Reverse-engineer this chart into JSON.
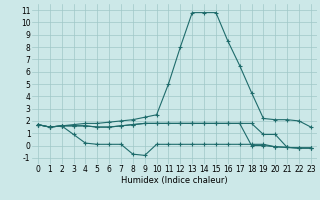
{
  "xlabel": "Humidex (Indice chaleur)",
  "x": [
    0,
    1,
    2,
    3,
    4,
    5,
    6,
    7,
    8,
    9,
    10,
    11,
    12,
    13,
    14,
    15,
    16,
    17,
    18,
    19,
    20,
    21,
    22,
    23
  ],
  "line1": [
    1.7,
    1.5,
    1.6,
    1.7,
    1.8,
    1.8,
    1.9,
    2.0,
    2.1,
    2.3,
    2.5,
    5.0,
    8.0,
    10.8,
    10.8,
    10.8,
    8.5,
    6.5,
    4.3,
    2.2,
    2.1,
    2.1,
    2.0,
    1.5
  ],
  "line2": [
    1.7,
    1.5,
    1.6,
    0.9,
    0.2,
    0.1,
    0.1,
    0.1,
    -0.7,
    -0.8,
    0.1,
    0.1,
    0.1,
    0.1,
    0.1,
    0.1,
    0.1,
    0.1,
    0.1,
    0.1,
    -0.1,
    -0.15,
    -0.2,
    -0.2
  ],
  "line3": [
    1.7,
    1.5,
    1.6,
    1.6,
    1.6,
    1.5,
    1.5,
    1.6,
    1.7,
    1.8,
    1.8,
    1.8,
    1.8,
    1.8,
    1.8,
    1.8,
    1.8,
    1.8,
    0.0,
    0.0,
    -0.1,
    -0.15,
    -0.2,
    -0.2
  ],
  "line4": [
    1.7,
    1.5,
    1.6,
    1.6,
    1.6,
    1.5,
    1.5,
    1.6,
    1.7,
    1.8,
    1.8,
    1.8,
    1.8,
    1.8,
    1.8,
    1.8,
    1.8,
    1.8,
    1.8,
    0.9,
    0.9,
    -0.15,
    -0.2,
    -0.2
  ],
  "bg_color": "#cce8e8",
  "line_color": "#1e6b6b",
  "grid_color": "#a0c8c8",
  "ylim": [
    -1.5,
    11.5
  ],
  "xlim": [
    -0.5,
    23.5
  ],
  "yticks": [
    -1,
    0,
    1,
    2,
    3,
    4,
    5,
    6,
    7,
    8,
    9,
    10,
    11
  ],
  "xticks": [
    0,
    1,
    2,
    3,
    4,
    5,
    6,
    7,
    8,
    9,
    10,
    11,
    12,
    13,
    14,
    15,
    16,
    17,
    18,
    19,
    20,
    21,
    22,
    23
  ],
  "tick_fontsize": 5.5,
  "xlabel_fontsize": 6.0
}
